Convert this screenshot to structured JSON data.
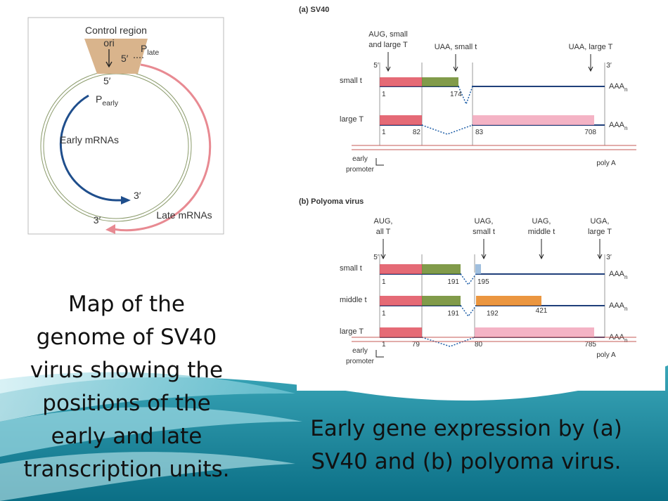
{
  "genome_map": {
    "control_region": "Control region",
    "ori": "ori",
    "late_5prime": "5′",
    "p_late": "P",
    "p_late_sub": "late",
    "early_5prime": "5′",
    "p_early": "P",
    "p_early_sub": "early",
    "early_mrnas": "Early mRNAs",
    "early_3prime": "3′",
    "late_3prime": "3′",
    "late_mrnas": "Late mRNAs"
  },
  "left_caption": [
    "Map of the",
    "genome of SV40",
    "virus showing the",
    "positions of the",
    "early and late",
    "transcription units."
  ],
  "panel_a": {
    "title": "(a) SV40",
    "codons": [
      [
        "AUG, small",
        "and large T"
      ],
      [
        "UAA, small t"
      ],
      [
        "UAA, large T"
      ]
    ],
    "five_prime": "5′",
    "three_prime": "3′",
    "rows": [
      {
        "label": "small t",
        "numbers": [
          "1",
          "174"
        ]
      },
      {
        "label": "large T",
        "numbers": [
          "1",
          "82",
          "83",
          "708"
        ]
      }
    ],
    "poly_a_tail": "AAA",
    "poly_a_sub": "n",
    "early_promoter": [
      "early",
      "promoter"
    ],
    "poly_a": "poly A"
  },
  "panel_b": {
    "title": "(b) Polyoma virus",
    "codons": [
      [
        "AUG,",
        "all T"
      ],
      [
        "UAG,",
        "small t"
      ],
      [
        "UAG,",
        "middle t"
      ],
      [
        "UGA,",
        "large T"
      ]
    ],
    "five_prime": "5′",
    "three_prime": "3′",
    "rows": [
      {
        "label": "small t",
        "numbers": [
          "1",
          "191",
          "195"
        ]
      },
      {
        "label": "middle t",
        "numbers": [
          "1",
          "191",
          "192",
          "421"
        ]
      },
      {
        "label": "large T",
        "numbers": [
          "1",
          "79",
          "80",
          "785"
        ]
      }
    ],
    "poly_a_tail": "AAA",
    "poly_a_sub": "n",
    "early_promoter": [
      "early",
      "promoter"
    ],
    "poly_a": "poly A"
  },
  "right_caption": [
    "Early gene expression by (a)",
    "SV40 and (b) polyoma virus."
  ]
}
